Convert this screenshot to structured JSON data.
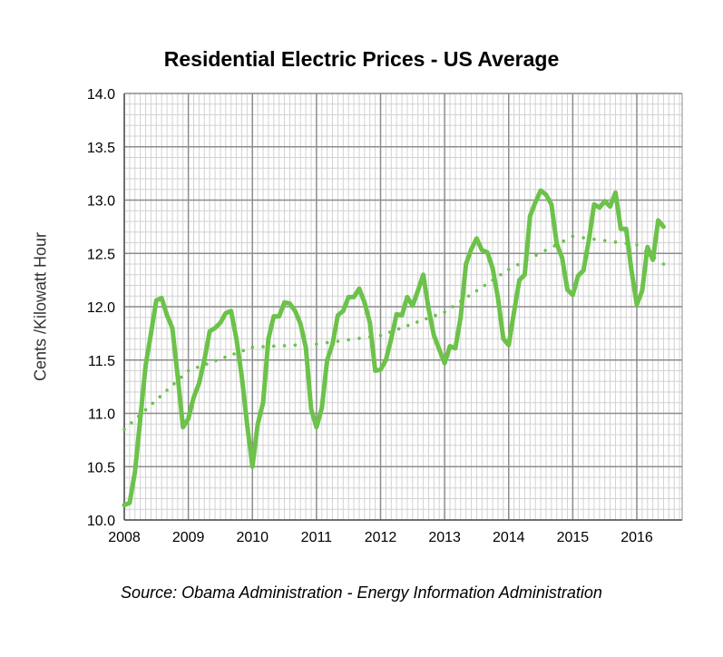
{
  "chart_data": {
    "type": "line",
    "title": "Residential Electric Prices - US Average",
    "xlabel": "",
    "ylabel": "Cents /Kilowatt Hour",
    "source": "Source: Obama Administration - Energy Information Administration",
    "x_start": "2008-01",
    "x_end": "2016-06",
    "x_ticks": [
      "2008",
      "2009",
      "2010",
      "2011",
      "2012",
      "2013",
      "2014",
      "2015",
      "2016"
    ],
    "ylim": [
      10.0,
      14.0
    ],
    "y_ticks": [
      "10.0",
      "10.5",
      "11.0",
      "11.5",
      "12.0",
      "12.5",
      "13.0",
      "13.5",
      "14.0"
    ],
    "grid": true,
    "colors": {
      "line": "#6cc24a",
      "grid_major": "#8c8c8c",
      "grid_minor": "#d2d2d2"
    },
    "series": [
      {
        "style": "solid",
        "x": [
          "2008-01",
          "2008-02",
          "2008-03",
          "2008-04",
          "2008-05",
          "2008-06",
          "2008-07",
          "2008-08",
          "2008-09",
          "2008-10",
          "2008-11",
          "2008-12",
          "2009-01",
          "2009-02",
          "2009-03",
          "2009-04",
          "2009-05",
          "2009-06",
          "2009-07",
          "2009-08",
          "2009-09",
          "2009-10",
          "2009-11",
          "2009-12",
          "2010-01",
          "2010-02",
          "2010-03",
          "2010-04",
          "2010-05",
          "2010-06",
          "2010-07",
          "2010-08",
          "2010-09",
          "2010-10",
          "2010-11",
          "2010-12",
          "2011-01",
          "2011-02",
          "2011-03",
          "2011-04",
          "2011-05",
          "2011-06",
          "2011-07",
          "2011-08",
          "2011-09",
          "2011-10",
          "2011-11",
          "2011-12",
          "2012-01",
          "2012-02",
          "2012-03",
          "2012-04",
          "2012-05",
          "2012-06",
          "2012-07",
          "2012-08",
          "2012-09",
          "2012-10",
          "2012-11",
          "2012-12",
          "2013-01",
          "2013-02",
          "2013-03",
          "2013-04",
          "2013-05",
          "2013-06",
          "2013-07",
          "2013-08",
          "2013-09",
          "2013-10",
          "2013-11",
          "2013-12",
          "2014-01",
          "2014-02",
          "2014-03",
          "2014-04",
          "2014-05",
          "2014-06",
          "2014-07",
          "2014-08",
          "2014-09",
          "2014-10",
          "2014-11",
          "2014-12",
          "2015-01",
          "2015-02",
          "2015-03",
          "2015-04",
          "2015-05",
          "2015-06",
          "2015-07",
          "2015-08",
          "2015-09",
          "2015-10",
          "2015-11",
          "2015-12",
          "2016-01",
          "2016-02",
          "2016-03",
          "2016-04",
          "2016-05",
          "2016-06"
        ],
        "values": [
          10.14,
          10.16,
          10.45,
          10.95,
          11.45,
          11.75,
          12.06,
          12.08,
          11.92,
          11.8,
          11.35,
          10.87,
          10.95,
          11.15,
          11.28,
          11.5,
          11.77,
          11.8,
          11.85,
          11.94,
          11.96,
          11.7,
          11.35,
          10.9,
          10.5,
          10.9,
          11.1,
          11.7,
          11.91,
          11.91,
          12.04,
          12.03,
          11.96,
          11.84,
          11.62,
          11.04,
          10.87,
          11.05,
          11.5,
          11.65,
          11.92,
          11.96,
          12.09,
          12.09,
          12.17,
          12.04,
          11.85,
          11.4,
          11.41,
          11.5,
          11.7,
          11.93,
          11.92,
          12.09,
          12.01,
          12.15,
          12.3,
          11.98,
          11.73,
          11.6,
          11.47,
          11.63,
          11.61,
          11.9,
          12.4,
          12.54,
          12.64,
          12.53,
          12.51,
          12.36,
          12.08,
          11.7,
          11.64,
          11.95,
          12.25,
          12.3,
          12.85,
          12.98,
          13.09,
          13.05,
          12.96,
          12.59,
          12.46,
          12.16,
          12.11,
          12.29,
          12.34,
          12.62,
          12.96,
          12.93,
          12.99,
          12.94,
          13.07,
          12.73,
          12.73,
          12.34,
          12.02,
          12.15,
          12.56,
          12.44,
          12.81,
          12.75
        ]
      },
      {
        "style": "dotted",
        "x": [
          "2008-01",
          "2009-01",
          "2010-01",
          "2011-01",
          "2012-01",
          "2013-01",
          "2014-01",
          "2015-01",
          "2016-01",
          "2016-06"
        ],
        "values": [
          10.85,
          11.4,
          11.62,
          11.65,
          11.73,
          11.95,
          12.35,
          12.66,
          12.58,
          12.4
        ]
      }
    ]
  }
}
